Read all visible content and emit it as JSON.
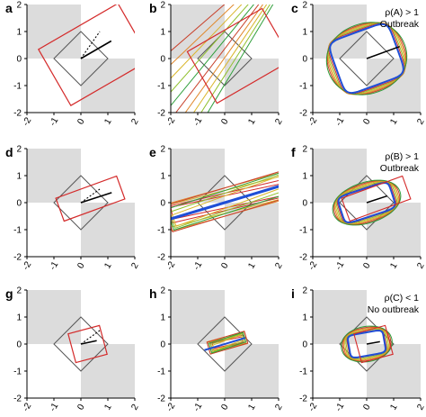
{
  "figure": {
    "panels": [
      {
        "label": "a",
        "row": 0,
        "col": 0,
        "annotation": []
      },
      {
        "label": "b",
        "row": 0,
        "col": 1,
        "annotation": []
      },
      {
        "label": "c",
        "row": 0,
        "col": 2,
        "annotation": [
          "ρ(A) > 1",
          "Outbreak"
        ]
      },
      {
        "label": "d",
        "row": 1,
        "col": 0,
        "annotation": []
      },
      {
        "label": "e",
        "row": 1,
        "col": 1,
        "annotation": []
      },
      {
        "label": "f",
        "row": 1,
        "col": 2,
        "annotation": [
          "ρ(B) > 1",
          "Outbreak"
        ]
      },
      {
        "label": "g",
        "row": 2,
        "col": 0,
        "annotation": []
      },
      {
        "label": "h",
        "row": 2,
        "col": 1,
        "annotation": []
      },
      {
        "label": "i",
        "row": 2,
        "col": 2,
        "annotation": [
          "ρ(C) < 1",
          "No outbreak"
        ]
      }
    ],
    "axes": {
      "xlim": [
        -2,
        2
      ],
      "ylim": [
        -2,
        2
      ],
      "xticks": [
        "-2",
        "-1",
        "0",
        "1",
        "2"
      ],
      "yticks": [
        "2",
        "1",
        "0",
        "-1",
        "-2"
      ]
    },
    "colors": {
      "shade": "#dcdcdc",
      "square": "#555555",
      "red": "#d42a2a",
      "blue": "#1f4fd6",
      "arrow": "#000000",
      "family": [
        "#2e9e3a",
        "#8fbf2a",
        "#d9b52a",
        "#e0872a",
        "#c8402a"
      ]
    }
  }
}
